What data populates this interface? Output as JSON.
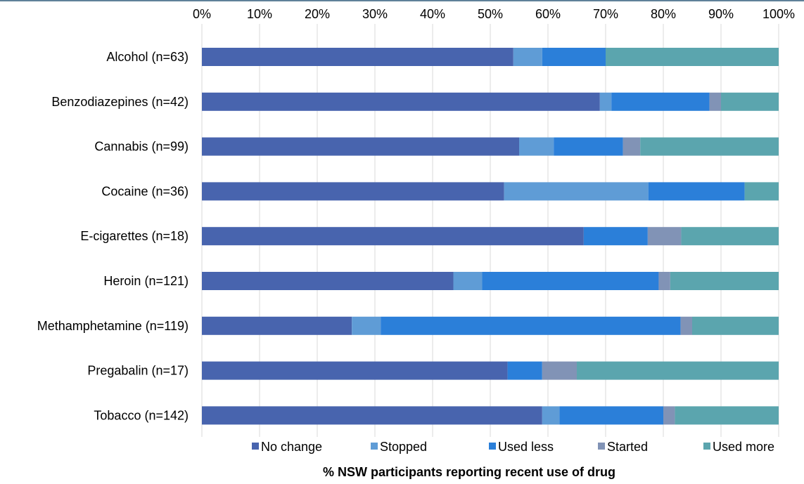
{
  "chart_data": {
    "type": "bar",
    "orientation": "horizontal",
    "stacked": "percent",
    "categories": [
      "Alcohol (n=63)",
      "Benzodiazepines (n=42)",
      "Cannabis (n=99)",
      "Cocaine (n=36)",
      "E-cigarettes (n=18)",
      "Heroin (n=121)",
      "Methamphetamine (n=119)",
      "Pregabalin (n=17)",
      "Tobacco (n=142)"
    ],
    "series": [
      {
        "name": "No change",
        "color": "#4864AE",
        "values": [
          54,
          69,
          55,
          52.4,
          66.2,
          43.6,
          26,
          53,
          59
        ]
      },
      {
        "name": "Stopped",
        "color": "#5F9CD6",
        "values": [
          5,
          2,
          6,
          25,
          0,
          5,
          5,
          0,
          3
        ]
      },
      {
        "name": "Used less",
        "color": "#2B7FD9",
        "values": [
          11,
          17,
          12,
          16.7,
          11.1,
          30.6,
          52,
          6,
          18
        ]
      },
      {
        "name": "Started",
        "color": "#8193B6",
        "values": [
          0,
          2,
          3,
          0,
          5.8,
          2,
          2,
          6,
          2
        ]
      },
      {
        "name": "Used more",
        "color": "#5BA5AE",
        "values": [
          30,
          10,
          24,
          5.9,
          16.9,
          18.8,
          15,
          35,
          18
        ]
      }
    ],
    "x_tick_labels": [
      "0%",
      "10%",
      "20%",
      "30%",
      "40%",
      "50%",
      "60%",
      "70%",
      "80%",
      "90%",
      "100%"
    ],
    "xlim": [
      0,
      100
    ],
    "xlabel": "% NSW participants reporting recent use of drug",
    "x_axis_position": "top",
    "grid": true,
    "legend_position": "bottom"
  }
}
